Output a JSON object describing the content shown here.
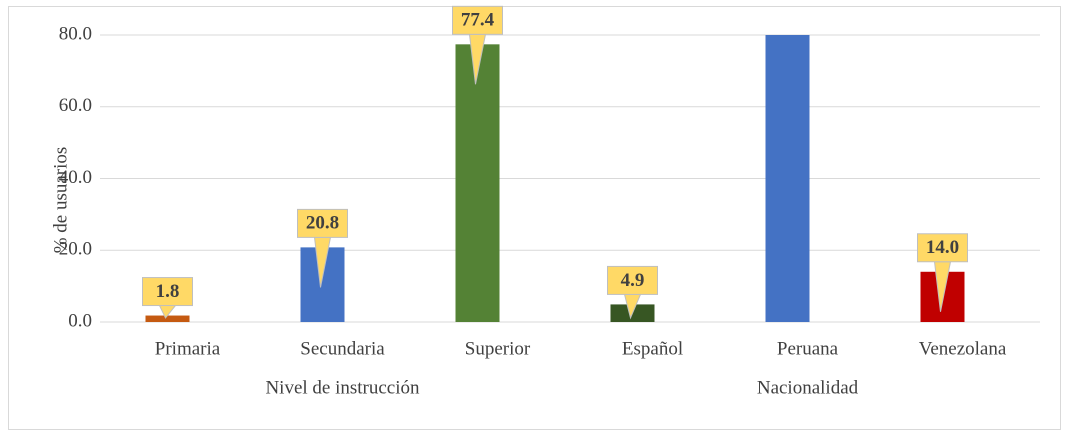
{
  "chart_data": {
    "type": "bar",
    "y_label": "% de usuarios",
    "categories": [
      "Primaria",
      "Secundaria",
      "Superior",
      "Español",
      "Peruana",
      "Venezolana"
    ],
    "groups": [
      {
        "label": "Nivel de instrucción",
        "size": 3
      },
      {
        "label": "Nacionalidad",
        "size": 3
      }
    ],
    "values": [
      1.8,
      20.8,
      77.4,
      4.9,
      81.1,
      14.0
    ],
    "value_labels": [
      "1.8",
      "20.8",
      "77.4",
      "4.9",
      null,
      "14.0"
    ],
    "colors": [
      "#c55a11",
      "#4472c4",
      "#548235",
      "#375623",
      "#4472c4",
      "#c00000"
    ],
    "ylim": [
      0,
      80
    ],
    "yticks": [
      {
        "value": 0,
        "label": "0.0"
      },
      {
        "value": 20,
        "label": "20.0"
      },
      {
        "value": 40,
        "label": "40.0"
      },
      {
        "value": 60,
        "label": "60.0"
      },
      {
        "value": 80,
        "label": "80.0"
      }
    ],
    "grid": true
  }
}
